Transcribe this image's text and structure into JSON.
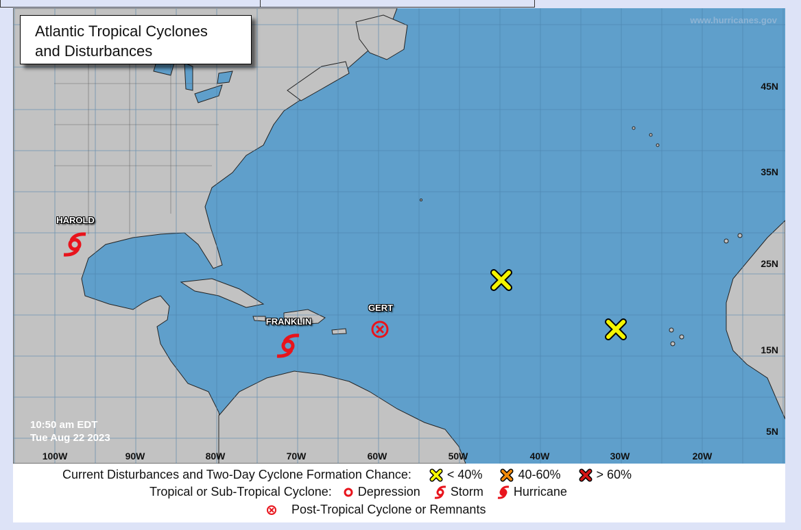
{
  "title": "Atlantic Tropical Cyclones\nand Disturbances",
  "title_lines": [
    "Atlantic Tropical Cyclones",
    "and Disturbances"
  ],
  "watermark": "www.hurricanes.gov",
  "timestamp": {
    "time": "10:50 am EDT",
    "date": "Tue Aug 22 2023"
  },
  "latitude_labels": [
    "45N",
    "35N",
    "25N",
    "15N",
    "5N"
  ],
  "longitude_labels": [
    "100W",
    "90W",
    "80W",
    "70W",
    "60W",
    "50W",
    "40W",
    "30W",
    "20W"
  ],
  "colors": {
    "ocean": "#5f9fcb",
    "land": "#c2c2c2",
    "storm_red": "#e8141c",
    "low_chance": "#f5f500",
    "mid_chance": "#f08a0a",
    "high_chance": "#d41414"
  },
  "systems": [
    {
      "name": "HAROLD",
      "type": "storm",
      "icon": "tropical-storm-icon"
    },
    {
      "name": "FRANKLIN",
      "type": "storm",
      "icon": "tropical-storm-icon"
    },
    {
      "name": "GERT",
      "type": "post-tropical",
      "icon": "post-tropical-icon"
    }
  ],
  "disturbances": [
    {
      "chance": "< 40%",
      "icon": "yellow-x-icon"
    },
    {
      "chance": "< 40%",
      "icon": "yellow-x-icon"
    }
  ],
  "legend": {
    "row1_label": "Current Disturbances and Two-Day Cyclone Formation Chance:",
    "low": "< 40%",
    "mid": "40-60%",
    "high": "> 60%",
    "row2_label": "Tropical or Sub-Tropical Cyclone:",
    "depression": "Depression",
    "storm": "Storm",
    "hurricane": "Hurricane",
    "post_tropical": "Post-Tropical Cyclone or Remnants"
  }
}
